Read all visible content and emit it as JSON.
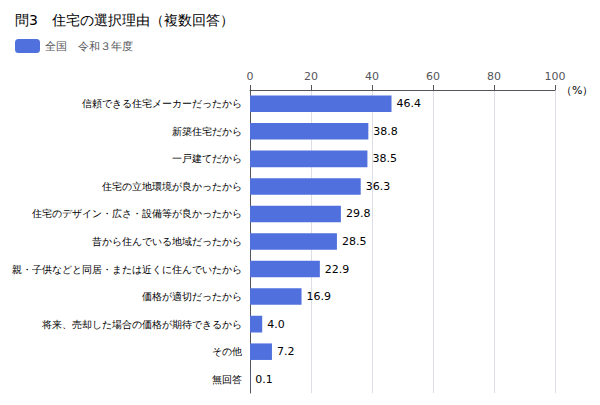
{
  "chart_data": {
    "type": "bar",
    "orientation": "horizontal",
    "title": "問3　住宅の選択理由（複数回答）",
    "xlabel": "（%）",
    "categories": [
      "信頼できる住宅メーカーだったから",
      "新築住宅だから",
      "一戸建てだから",
      "住宅の立地環境が良かったから",
      "住宅のデザイン・広さ・設備等が良かったから",
      "昔から住んでいる地域だったから",
      "親・子供などと同居・または近くに住んでいたから",
      "価格が適切だったから",
      "将来、売却した場合の価格が期待できるから",
      "その他",
      "無回答"
    ],
    "series": [
      {
        "name": "全国　令和３年度",
        "values": [
          46.4,
          38.8,
          38.5,
          36.3,
          29.8,
          28.5,
          22.9,
          16.9,
          4.0,
          7.2,
          0.1
        ],
        "value_labels": [
          "46.4",
          "38.8",
          "38.5",
          "36.3",
          "29.8",
          "28.5",
          "22.9",
          "16.9",
          "4.0",
          "7.2",
          "0.1"
        ]
      }
    ],
    "xlim": [
      0,
      100
    ],
    "xticks": [
      0,
      20,
      40,
      60,
      80,
      100
    ],
    "grid": true,
    "legend": "top-left",
    "data_labels": true
  }
}
